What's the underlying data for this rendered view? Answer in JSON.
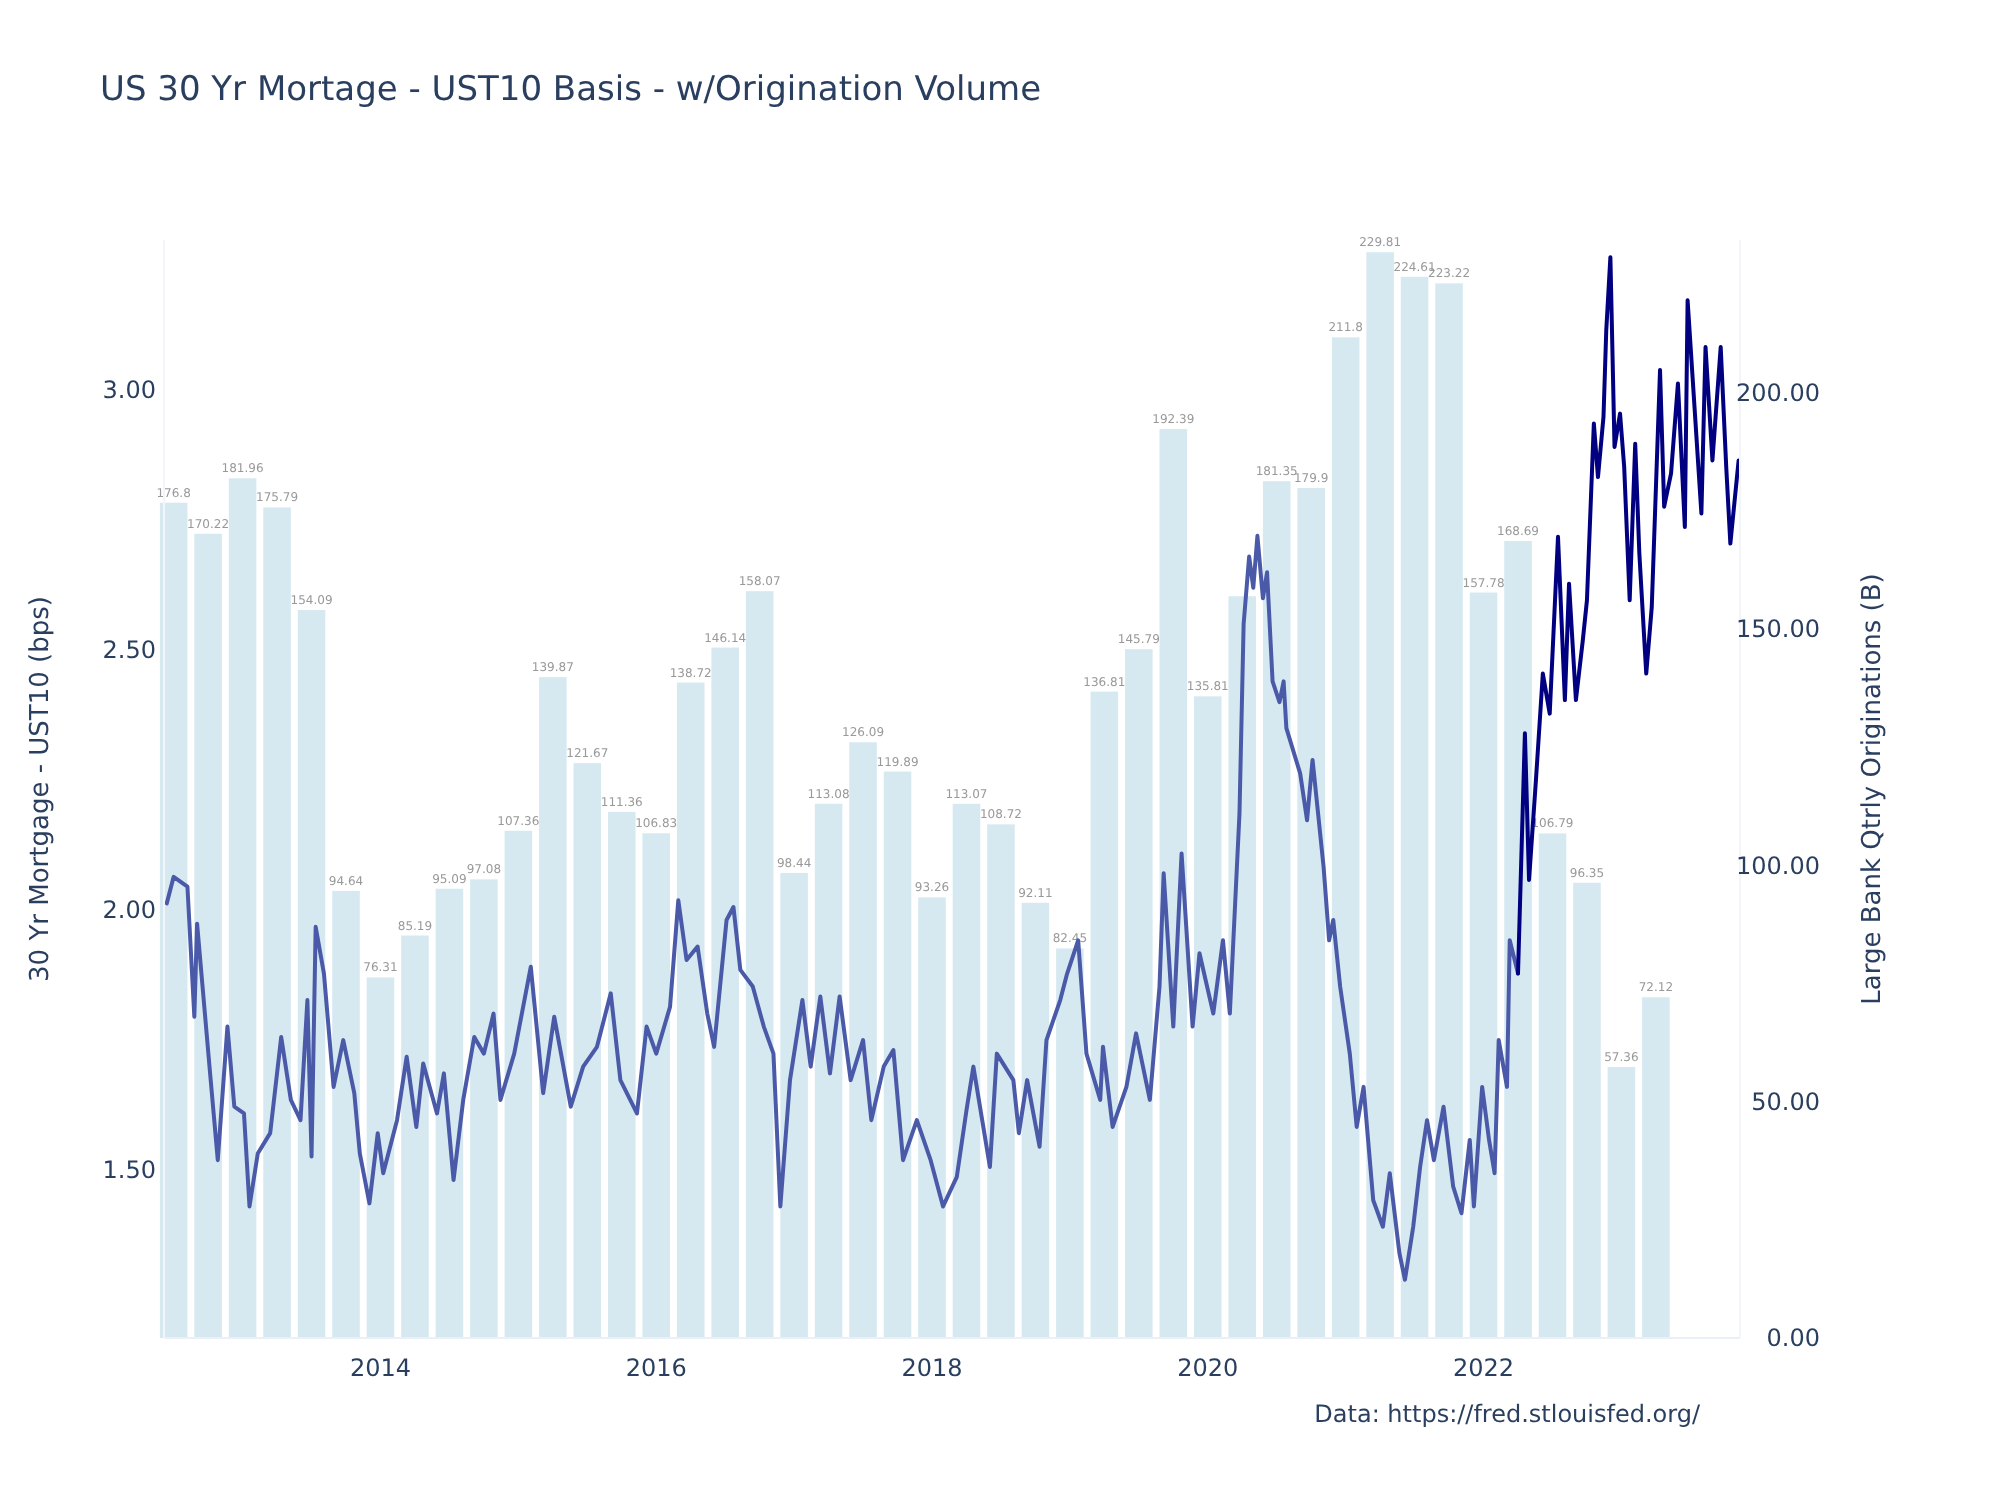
{
  "chart_data": {
    "type": "bar",
    "title": "US 30 Yr Mortage - UST10 Basis - w/Origination Volume",
    "ylabel": "30 Yr Mortgage - UST10 (bps)",
    "y2label": "Large Bank Qtrly Originations (B)",
    "annotations": [
      "Data: https://fred.stlouisfed.org/"
    ],
    "xlim": [
      2012.43,
      2023.86
    ],
    "xticks": [
      2014,
      2016,
      2018,
      2020,
      2022
    ],
    "ylim": [
      1.177,
      3.289
    ],
    "yticks": [
      {
        "value": 1.5,
        "label": "1.50"
      },
      {
        "value": 2,
        "label": "2.00"
      },
      {
        "value": 2.5,
        "label": "2.50"
      },
      {
        "value": 3,
        "label": "3.00"
      }
    ],
    "y2lim": [
      0,
      232.4
    ],
    "y2ticks": [
      {
        "value": 0,
        "label": "0.00"
      },
      {
        "value": 50,
        "label": "50.00"
      },
      {
        "value": 100,
        "label": "100.00"
      },
      {
        "value": 150,
        "label": "150.00"
      },
      {
        "value": 200,
        "label": "200.00"
      }
    ],
    "grid": false,
    "series": [
      {
        "axis": "y2",
        "color": "#d6e9f1",
        "x": [
          2012.5,
          2012.75,
          2013,
          2013.25,
          2013.5,
          2013.75,
          2014,
          2014.25,
          2014.5,
          2014.75,
          2015,
          2015.25,
          2015.5,
          2015.75,
          2016,
          2016.25,
          2016.5,
          2016.75,
          2017,
          2017.25,
          2017.5,
          2017.75,
          2018,
          2018.25,
          2018.5,
          2018.75,
          2019,
          2019.25,
          2019.5,
          2019.75,
          2020,
          2020.25,
          2020.5,
          2020.75,
          2021,
          2021.25,
          2021.5,
          2021.75,
          2022,
          2022.25,
          2022.5,
          2022.75,
          2023,
          2023.25
        ],
        "values": [
          176.8,
          170.22,
          181.96,
          175.79,
          154.09,
          94.64,
          76.31,
          85.19,
          95.09,
          97.08,
          107.36,
          139.87,
          121.67,
          111.36,
          106.83,
          138.72,
          146.14,
          158.07,
          98.44,
          113.08,
          126.09,
          119.89,
          93.26,
          113.07,
          108.72,
          92.11,
          82.45,
          136.81,
          145.79,
          192.39,
          135.81,
          157,
          181.35,
          179.9,
          211.8,
          229.81,
          224.61,
          223.22,
          157.78,
          168.69,
          106.79,
          96.35,
          57.36,
          72.12
        ],
        "value_labels": [
          "176.8",
          "170.22",
          "181.96",
          "175.79",
          "154.09",
          "94.64",
          "76.31",
          "85.19",
          "95.09",
          "97.08",
          "107.36",
          "139.87",
          "121.67",
          "111.36",
          "106.83",
          "138.72",
          "146.14",
          "158.07",
          "98.44",
          "113.08",
          "126.09",
          "119.89",
          "93.26",
          "113.07",
          "108.72",
          "92.11",
          "82.45",
          "136.81",
          "145.79",
          "192.39",
          "135.81",
          null,
          "181.35",
          "179.9",
          "211.8",
          "229.81",
          "224.61",
          "223.22",
          "157.78",
          "168.69",
          "106.79",
          "96.35",
          "57.36",
          "72.12"
        ]
      },
      {
        "type": "line",
        "axis": "y",
        "color": "#4b5aa8",
        "x": [
          2012.45,
          2012.5,
          2012.6,
          2012.65,
          2012.67,
          2012.76,
          2012.82,
          2012.89,
          2012.94,
          2013.01,
          2013.05,
          2013.11,
          2013.2,
          2013.28,
          2013.35,
          2013.42,
          2013.47,
          2013.5,
          2013.53,
          2013.59,
          2013.66,
          2013.73,
          2013.81,
          2013.85,
          2013.92,
          2013.98,
          2014.02,
          2014.12,
          2014.19,
          2014.26,
          2014.31,
          2014.41,
          2014.46,
          2014.53,
          2014.6,
          2014.68,
          2014.75,
          2014.82,
          2014.87,
          2014.97,
          2015.09,
          2015.18,
          2015.26,
          2015.38,
          2015.47,
          2015.57,
          2015.67,
          2015.74,
          2015.86,
          2015.93,
          2016,
          2016.1,
          2016.16,
          2016.22,
          2016.3,
          2016.37,
          2016.42,
          2016.51,
          2016.56,
          2016.61,
          2016.7,
          2016.78,
          2016.85,
          2016.9,
          2016.97,
          2017.06,
          2017.12,
          2017.19,
          2017.26,
          2017.33,
          2017.41,
          2017.5,
          2017.56,
          2017.65,
          2017.72,
          2017.79,
          2017.89,
          2017.99,
          2018.08,
          2018.18,
          2018.25,
          2018.3,
          2018.42,
          2018.47,
          2018.59,
          2018.63,
          2018.69,
          2018.78,
          2018.83,
          2018.93,
          2018.98,
          2019.06,
          2019.12,
          2019.22,
          2019.24,
          2019.31,
          2019.41,
          2019.48,
          2019.58,
          2019.65,
          2019.68,
          2019.75,
          2019.81,
          2019.89,
          2019.94,
          2020.04,
          2020.11,
          2020.16,
          2020.23,
          2020.26,
          2020.3,
          2020.33,
          2020.36,
          2020.4,
          2020.43,
          2020.47,
          2020.52,
          2020.55,
          2020.57,
          2020.67,
          2020.72,
          2020.76,
          2020.84,
          2020.88,
          2020.91,
          2020.96,
          2021.03,
          2021.08,
          2021.13,
          2021.2,
          2021.27,
          2021.32,
          2021.39,
          2021.43,
          2021.49,
          2021.54,
          2021.59,
          2021.64,
          2021.71,
          2021.78,
          2021.84,
          2021.9,
          2021.93,
          2021.99,
          2022.04,
          2022.08,
          2022.11,
          2022.17,
          2022.19,
          2022.25
        ],
        "values": [
          2.013,
          2.064,
          2.045,
          1.795,
          1.974,
          1.699,
          1.519,
          1.776,
          1.622,
          1.609,
          1.43,
          1.532,
          1.571,
          1.756,
          1.635,
          1.596,
          1.827,
          1.526,
          1.968,
          1.878,
          1.66,
          1.75,
          1.648,
          1.532,
          1.436,
          1.571,
          1.494,
          1.596,
          1.718,
          1.583,
          1.705,
          1.609,
          1.686,
          1.481,
          1.635,
          1.756,
          1.724,
          1.801,
          1.635,
          1.724,
          1.891,
          1.648,
          1.795,
          1.622,
          1.699,
          1.737,
          1.84,
          1.673,
          1.609,
          1.776,
          1.724,
          1.814,
          2.019,
          1.904,
          1.93,
          1.801,
          1.737,
          1.981,
          2.006,
          1.885,
          1.853,
          1.776,
          1.724,
          1.43,
          1.673,
          1.827,
          1.699,
          1.834,
          1.686,
          1.834,
          1.673,
          1.75,
          1.596,
          1.699,
          1.731,
          1.519,
          1.596,
          1.519,
          1.43,
          1.487,
          1.615,
          1.699,
          1.506,
          1.724,
          1.673,
          1.571,
          1.673,
          1.545,
          1.75,
          1.827,
          1.878,
          1.942,
          1.724,
          1.635,
          1.737,
          1.583,
          1.66,
          1.763,
          1.635,
          1.853,
          2.071,
          1.776,
          2.109,
          1.776,
          1.917,
          1.801,
          1.942,
          1.801,
          2.186,
          2.55,
          2.68,
          2.62,
          2.72,
          2.6,
          2.65,
          2.44,
          2.4,
          2.44,
          2.35,
          2.263,
          2.173,
          2.289,
          2.083,
          1.942,
          1.981,
          1.853,
          1.724,
          1.583,
          1.66,
          1.442,
          1.391,
          1.494,
          1.34,
          1.289,
          1.391,
          1.506,
          1.596,
          1.519,
          1.622,
          1.468,
          1.417,
          1.558,
          1.43,
          1.66,
          1.558,
          1.494,
          1.75,
          1.66,
          1.942,
          1.878
        ]
      },
      {
        "type": "line",
        "axis": "y",
        "color": "#000080",
        "x": [
          2022.25,
          2022.3,
          2022.33,
          2022.38,
          2022.43,
          2022.48,
          2022.54,
          2022.59,
          2022.62,
          2022.67,
          2022.72,
          2022.75,
          2022.8,
          2022.83,
          2022.87,
          2022.89,
          2022.92,
          2022.95,
          2022.99,
          2023.02,
          2023.06,
          2023.1,
          2023.13,
          2023.18,
          2023.22,
          2023.28,
          2023.31,
          2023.36,
          2023.41,
          2023.46,
          2023.48,
          2023.53,
          2023.58,
          2023.61,
          2023.66,
          2023.72,
          2023.76,
          2023.79,
          2023.85
        ],
        "values": [
          1.878,
          2.34,
          2.058,
          2.25,
          2.455,
          2.378,
          2.718,
          2.404,
          2.628,
          2.404,
          2.519,
          2.596,
          2.936,
          2.833,
          2.949,
          3.115,
          3.256,
          2.891,
          2.955,
          2.853,
          2.596,
          2.897,
          2.686,
          2.455,
          2.583,
          3.039,
          2.776,
          2.84,
          3.013,
          2.737,
          3.173,
          2.968,
          2.763,
          3.083,
          2.865,
          3.083,
          2.853,
          2.705,
          2.865
        ]
      }
    ]
  }
}
